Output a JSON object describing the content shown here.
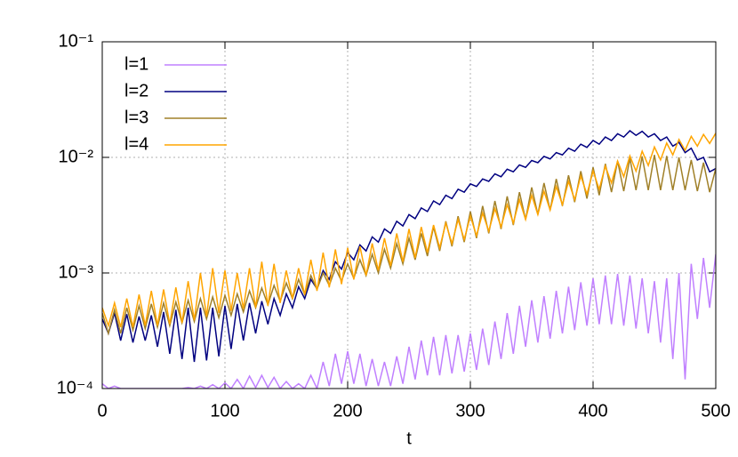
{
  "chart_data": {
    "type": "line",
    "xlabel": "t",
    "log_scale_y": true,
    "grid": true,
    "legend": "top-left",
    "xlim": [
      0,
      500
    ],
    "xticks": [
      0,
      100,
      200,
      300,
      400,
      500
    ],
    "ylim": [
      0.0001,
      0.1
    ],
    "yticks": [
      {
        "value": 0.0001,
        "label": "10⁻⁴"
      },
      {
        "value": 0.001,
        "label": "10⁻³"
      },
      {
        "value": 0.01,
        "label": "10⁻²"
      },
      {
        "value": 0.1,
        "label": "10⁻¹"
      }
    ],
    "x": [
      0,
      5,
      10,
      15,
      20,
      25,
      30,
      35,
      40,
      45,
      50,
      55,
      60,
      65,
      70,
      75,
      80,
      85,
      90,
      95,
      100,
      105,
      110,
      115,
      120,
      125,
      130,
      135,
      140,
      145,
      150,
      155,
      160,
      165,
      170,
      175,
      180,
      185,
      190,
      195,
      200,
      205,
      210,
      215,
      220,
      225,
      230,
      235,
      240,
      245,
      250,
      255,
      260,
      265,
      270,
      275,
      280,
      285,
      290,
      295,
      300,
      305,
      310,
      315,
      320,
      325,
      330,
      335,
      340,
      345,
      350,
      355,
      360,
      365,
      370,
      375,
      380,
      385,
      390,
      395,
      400,
      405,
      410,
      415,
      420,
      425,
      430,
      435,
      440,
      445,
      450,
      455,
      460,
      465,
      470,
      475,
      480,
      485,
      490,
      495,
      500
    ],
    "series": [
      {
        "name": "l=1",
        "color": "#c080ff",
        "values": [
          0.00011,
          0.0001,
          0.000105,
          0.0001,
          0.0001,
          0.0001,
          0.0001,
          0.0001,
          0.0001,
          0.0001,
          0.0001,
          0.0001,
          0.0001,
          0.0001,
          0.000102,
          0.0001,
          0.000105,
          0.0001,
          0.000108,
          0.0001,
          0.000112,
          0.0001,
          0.00012,
          0.0001,
          0.000128,
          0.000102,
          0.00013,
          0.000102,
          0.000125,
          0.0001,
          0.000115,
          0.0001,
          0.00011,
          0.0001,
          0.00013,
          0.0001,
          0.00017,
          0.000105,
          0.0002,
          0.00011,
          0.00021,
          0.00011,
          0.0002,
          0.000105,
          0.00018,
          0.000105,
          0.00017,
          0.000105,
          0.00019,
          0.00011,
          0.00023,
          0.00012,
          0.00026,
          0.00013,
          0.00028,
          0.00013,
          0.00029,
          0.000135,
          0.00029,
          0.00014,
          0.0003,
          0.000145,
          0.00033,
          0.00016,
          0.00038,
          0.00018,
          0.00045,
          0.0002,
          0.00052,
          0.00023,
          0.00058,
          0.00025,
          0.00063,
          0.00027,
          0.0007,
          0.0003,
          0.00076,
          0.00032,
          0.00083,
          0.00035,
          0.0009,
          0.00036,
          0.00095,
          0.00036,
          0.00098,
          0.00035,
          0.00095,
          0.00033,
          0.0009,
          0.0003,
          0.00085,
          0.00025,
          0.0009,
          0.00018,
          0.001,
          0.00012,
          0.0012,
          0.0004,
          0.00135,
          0.0005,
          0.00145
        ]
      },
      {
        "name": "l=2",
        "color": "#000080",
        "values": [
          0.0004,
          0.0003,
          0.00045,
          0.00026,
          0.00044,
          0.00025,
          0.00042,
          0.00026,
          0.00043,
          0.00023,
          0.00046,
          0.0002,
          0.00048,
          0.00018,
          0.0005,
          0.00017,
          0.0005,
          0.000175,
          0.0005,
          0.00019,
          0.00052,
          0.00022,
          0.00054,
          0.00026,
          0.00055,
          0.0003,
          0.00057,
          0.00036,
          0.0006,
          0.00043,
          0.00066,
          0.0005,
          0.00076,
          0.0006,
          0.00088,
          0.00073,
          0.00105,
          0.00088,
          0.00125,
          0.00108,
          0.0015,
          0.0013,
          0.00175,
          0.00155,
          0.00205,
          0.00185,
          0.0024,
          0.0022,
          0.0028,
          0.00255,
          0.0032,
          0.00295,
          0.00365,
          0.0034,
          0.0042,
          0.0039,
          0.0047,
          0.0044,
          0.0053,
          0.005,
          0.0059,
          0.0056,
          0.0065,
          0.0062,
          0.0072,
          0.0068,
          0.0079,
          0.0075,
          0.0086,
          0.0082,
          0.0094,
          0.009,
          0.0102,
          0.0097,
          0.011,
          0.0105,
          0.012,
          0.0113,
          0.013,
          0.0122,
          0.014,
          0.013,
          0.015,
          0.014,
          0.016,
          0.015,
          0.017,
          0.0155,
          0.0168,
          0.015,
          0.016,
          0.014,
          0.015,
          0.0125,
          0.0135,
          0.011,
          0.012,
          0.0095,
          0.01,
          0.0075,
          0.008
        ]
      },
      {
        "name": "l=3",
        "color": "#a08028",
        "values": [
          0.00045,
          0.0003,
          0.00048,
          0.0003,
          0.0005,
          0.00032,
          0.00052,
          0.00033,
          0.00054,
          0.00034,
          0.00055,
          0.00035,
          0.00056,
          0.00037,
          0.00058,
          0.00038,
          0.0006,
          0.0004,
          0.00062,
          0.00041,
          0.00064,
          0.00043,
          0.00066,
          0.00046,
          0.0007,
          0.0005,
          0.00074,
          0.00053,
          0.00078,
          0.00057,
          0.00082,
          0.0006,
          0.00088,
          0.00065,
          0.00095,
          0.00072,
          0.001,
          0.00078,
          0.0011,
          0.00085,
          0.0012,
          0.0009,
          0.0013,
          0.00095,
          0.00145,
          0.001,
          0.0016,
          0.0011,
          0.0018,
          0.0012,
          0.002,
          0.0013,
          0.0022,
          0.0014,
          0.0025,
          0.00155,
          0.0028,
          0.0017,
          0.0031,
          0.00185,
          0.0034,
          0.002,
          0.0038,
          0.0022,
          0.0042,
          0.0024,
          0.0046,
          0.0026,
          0.005,
          0.0029,
          0.0055,
          0.0032,
          0.006,
          0.0035,
          0.0065,
          0.0038,
          0.007,
          0.0041,
          0.0076,
          0.0044,
          0.0082,
          0.0047,
          0.0088,
          0.005,
          0.0093,
          0.0051,
          0.0098,
          0.0052,
          0.0102,
          0.0052,
          0.0105,
          0.0052,
          0.0103,
          0.0052,
          0.01,
          0.0052,
          0.0095,
          0.0051,
          0.009,
          0.005,
          0.008
        ]
      },
      {
        "name": "l=4",
        "color": "#ffa500",
        "values": [
          0.0005,
          0.00035,
          0.00055,
          0.00034,
          0.0006,
          0.00034,
          0.00065,
          0.00035,
          0.0007,
          0.00035,
          0.00072,
          0.00036,
          0.00075,
          0.00037,
          0.00085,
          0.00039,
          0.001,
          0.00042,
          0.0011,
          0.00045,
          0.00105,
          0.00047,
          0.001,
          0.00049,
          0.0011,
          0.0005,
          0.00125,
          0.00052,
          0.0012,
          0.00055,
          0.00105,
          0.0006,
          0.0011,
          0.00065,
          0.0013,
          0.0007,
          0.0015,
          0.00075,
          0.0016,
          0.0008,
          0.00165,
          0.00088,
          0.0017,
          0.00095,
          0.0018,
          0.00105,
          0.002,
          0.00115,
          0.0022,
          0.00125,
          0.0024,
          0.00135,
          0.0025,
          0.0015,
          0.0026,
          0.00165,
          0.0027,
          0.0018,
          0.0029,
          0.00195,
          0.0031,
          0.0021,
          0.0033,
          0.0023,
          0.0036,
          0.0025,
          0.0039,
          0.0027,
          0.0043,
          0.0029,
          0.0047,
          0.0032,
          0.0051,
          0.0035,
          0.0056,
          0.0039,
          0.0062,
          0.0043,
          0.0069,
          0.0048,
          0.0076,
          0.0053,
          0.0084,
          0.006,
          0.0093,
          0.0068,
          0.0103,
          0.0076,
          0.0113,
          0.0085,
          0.0123,
          0.0095,
          0.0133,
          0.0105,
          0.0143,
          0.0115,
          0.0152,
          0.0125,
          0.0158,
          0.0132,
          0.0162
        ]
      }
    ]
  }
}
